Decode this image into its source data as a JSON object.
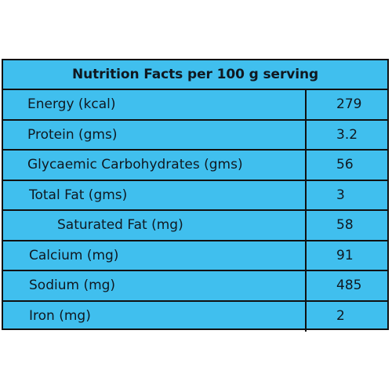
{
  "table": {
    "title": "Nutrition Facts per 100 g serving",
    "rows": [
      {
        "label": "Energy (kcal)",
        "value": "279"
      },
      {
        "label": "Protein (gms)",
        "value": "3.2"
      },
      {
        "label": "Glycaemic Carbohydrates (gms)",
        "value": "56"
      },
      {
        "label": "Total Fat (gms)",
        "value": "3"
      },
      {
        "label": "Saturated Fat (mg)",
        "value": "58"
      },
      {
        "label": "Calcium (mg)",
        "value": "91"
      },
      {
        "label": "Sodium (mg)",
        "value": "485"
      },
      {
        "label": "Iron (mg)",
        "value": "2"
      }
    ]
  },
  "colors": {
    "background": "#40bfee",
    "border": "#111111",
    "text": "#101820"
  }
}
